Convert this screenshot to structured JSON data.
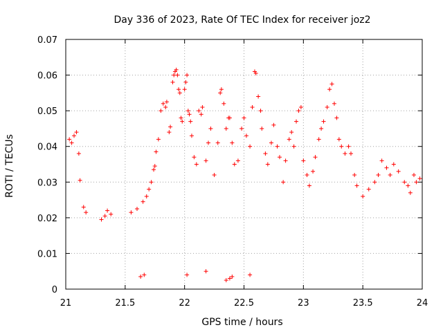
{
  "chart_data": {
    "type": "scatter",
    "title": "Day 336 of 2023, Rate Of TEC Index for receiver joz2",
    "xlabel": "GPS time / hours",
    "ylabel": "ROTI / TECUs",
    "xlim": [
      21,
      24
    ],
    "ylim": [
      0,
      0.07
    ],
    "x_ticks": [
      21,
      21.5,
      22,
      22.5,
      23,
      23.5,
      24
    ],
    "x_tick_labels": [
      "21",
      "21.5",
      "22",
      "22.5",
      "23",
      "23.5",
      "24"
    ],
    "y_ticks": [
      0,
      0.01,
      0.02,
      0.03,
      0.04,
      0.05,
      0.06,
      0.07
    ],
    "y_tick_labels": [
      "0",
      "0.01",
      "0.02",
      "0.03",
      "0.04",
      "0.05",
      "0.06",
      "0.07"
    ],
    "grid": true,
    "marker": "+",
    "marker_color": "#ff0000",
    "series": [
      {
        "name": "joz2",
        "points": [
          [
            21.03,
            0.042
          ],
          [
            21.05,
            0.041
          ],
          [
            21.07,
            0.043
          ],
          [
            21.09,
            0.044
          ],
          [
            21.11,
            0.038
          ],
          [
            21.12,
            0.0305
          ],
          [
            21.15,
            0.023
          ],
          [
            21.17,
            0.0215
          ],
          [
            21.3,
            0.0195
          ],
          [
            21.33,
            0.0205
          ],
          [
            21.35,
            0.022
          ],
          [
            21.38,
            0.021
          ],
          [
            21.55,
            0.0215
          ],
          [
            21.6,
            0.0225
          ],
          [
            21.65,
            0.0245
          ],
          [
            21.68,
            0.026
          ],
          [
            21.7,
            0.028
          ],
          [
            21.72,
            0.03
          ],
          [
            21.74,
            0.0335
          ],
          [
            21.75,
            0.0345
          ],
          [
            21.76,
            0.0385
          ],
          [
            21.78,
            0.042
          ],
          [
            21.8,
            0.05
          ],
          [
            21.82,
            0.052
          ],
          [
            21.84,
            0.051
          ],
          [
            21.85,
            0.0525
          ],
          [
            21.87,
            0.044
          ],
          [
            21.88,
            0.0455
          ],
          [
            21.9,
            0.058
          ],
          [
            21.91,
            0.06
          ],
          [
            21.92,
            0.061
          ],
          [
            21.93,
            0.0615
          ],
          [
            21.94,
            0.06
          ],
          [
            21.95,
            0.056
          ],
          [
            21.96,
            0.055
          ],
          [
            21.97,
            0.048
          ],
          [
            21.98,
            0.047
          ],
          [
            22.0,
            0.056
          ],
          [
            22.01,
            0.058
          ],
          [
            22.02,
            0.06
          ],
          [
            22.03,
            0.05
          ],
          [
            22.04,
            0.049
          ],
          [
            22.05,
            0.047
          ],
          [
            22.06,
            0.043
          ],
          [
            22.08,
            0.037
          ],
          [
            22.1,
            0.035
          ],
          [
            22.12,
            0.05
          ],
          [
            22.14,
            0.049
          ],
          [
            22.15,
            0.051
          ],
          [
            22.18,
            0.036
          ],
          [
            22.2,
            0.041
          ],
          [
            22.22,
            0.045
          ],
          [
            22.25,
            0.032
          ],
          [
            22.28,
            0.041
          ],
          [
            22.3,
            0.055
          ],
          [
            22.31,
            0.056
          ],
          [
            22.33,
            0.052
          ],
          [
            22.35,
            0.045
          ],
          [
            22.37,
            0.048
          ],
          [
            22.38,
            0.048
          ],
          [
            22.4,
            0.041
          ],
          [
            22.42,
            0.035
          ],
          [
            22.45,
            0.036
          ],
          [
            22.48,
            0.045
          ],
          [
            22.5,
            0.048
          ],
          [
            22.52,
            0.043
          ],
          [
            22.55,
            0.04
          ],
          [
            22.57,
            0.051
          ],
          [
            22.59,
            0.061
          ],
          [
            22.6,
            0.0605
          ],
          [
            22.62,
            0.054
          ],
          [
            22.64,
            0.05
          ],
          [
            22.65,
            0.045
          ],
          [
            22.68,
            0.038
          ],
          [
            22.7,
            0.035
          ],
          [
            22.73,
            0.041
          ],
          [
            22.75,
            0.046
          ],
          [
            22.78,
            0.04
          ],
          [
            22.8,
            0.037
          ],
          [
            22.83,
            0.03
          ],
          [
            22.85,
            0.036
          ],
          [
            22.88,
            0.042
          ],
          [
            22.9,
            0.044
          ],
          [
            22.92,
            0.04
          ],
          [
            22.94,
            0.047
          ],
          [
            22.96,
            0.05
          ],
          [
            22.98,
            0.051
          ],
          [
            23.0,
            0.036
          ],
          [
            23.03,
            0.032
          ],
          [
            23.05,
            0.029
          ],
          [
            23.08,
            0.033
          ],
          [
            23.1,
            0.037
          ],
          [
            23.13,
            0.042
          ],
          [
            23.15,
            0.045
          ],
          [
            23.17,
            0.047
          ],
          [
            23.2,
            0.051
          ],
          [
            23.22,
            0.056
          ],
          [
            23.24,
            0.0575
          ],
          [
            23.26,
            0.052
          ],
          [
            23.28,
            0.048
          ],
          [
            23.3,
            0.042
          ],
          [
            23.32,
            0.04
          ],
          [
            23.35,
            0.038
          ],
          [
            23.38,
            0.04
          ],
          [
            23.4,
            0.038
          ],
          [
            23.43,
            0.032
          ],
          [
            23.45,
            0.029
          ],
          [
            23.5,
            0.026
          ],
          [
            23.55,
            0.028
          ],
          [
            23.6,
            0.03
          ],
          [
            23.63,
            0.032
          ],
          [
            23.66,
            0.036
          ],
          [
            23.7,
            0.034
          ],
          [
            23.73,
            0.032
          ],
          [
            23.76,
            0.035
          ],
          [
            23.8,
            0.033
          ],
          [
            23.85,
            0.03
          ],
          [
            23.88,
            0.029
          ],
          [
            23.9,
            0.027
          ],
          [
            23.93,
            0.032
          ],
          [
            23.95,
            0.03
          ],
          [
            23.98,
            0.031
          ],
          [
            22.35,
            0.0025
          ],
          [
            22.38,
            0.003
          ],
          [
            22.4,
            0.0035
          ],
          [
            22.55,
            0.004
          ],
          [
            21.63,
            0.0035
          ],
          [
            21.66,
            0.004
          ],
          [
            22.02,
            0.004
          ],
          [
            22.18,
            0.005
          ]
        ]
      }
    ]
  }
}
